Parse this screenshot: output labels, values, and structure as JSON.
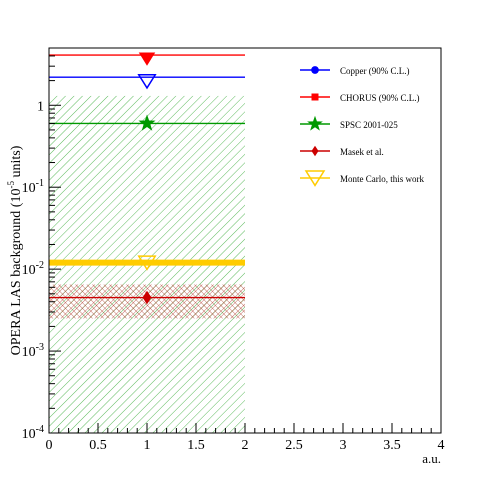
{
  "chart_data": {
    "type": "scatter",
    "xlabel": "a.u.",
    "ylabel_main": "OPERA LAS background (10",
    "ylabel_exp": "-5",
    "ylabel_tail": " units)",
    "xlim": [
      0,
      4
    ],
    "ylim": [
      0.0001,
      5
    ],
    "yscale": "log",
    "xticks": [
      {
        "v": 0,
        "label": "0"
      },
      {
        "v": 0.5,
        "label": "0.5"
      },
      {
        "v": 1,
        "label": "1"
      },
      {
        "v": 1.5,
        "label": "1.5"
      },
      {
        "v": 2,
        "label": "2"
      },
      {
        "v": 2.5,
        "label": "2.5"
      },
      {
        "v": 3,
        "label": "3"
      },
      {
        "v": 3.5,
        "label": "3.5"
      },
      {
        "v": 4,
        "label": "4"
      }
    ],
    "yticks": [
      {
        "v": 1,
        "label": "1"
      },
      {
        "v": 0.1,
        "label": "10",
        "exp": "-1"
      },
      {
        "v": 0.01,
        "label": "10",
        "exp": "-2"
      },
      {
        "v": 0.001,
        "label": "10",
        "exp": "-3"
      },
      {
        "v": 0.0001,
        "label": "10",
        "exp": "-4"
      }
    ],
    "series": [
      {
        "name": "Copper (90% C.L.)",
        "color": "#0000ff",
        "marker": "circle",
        "x": 1,
        "y": 2.2,
        "x_range": [
          0,
          2
        ],
        "band": null,
        "legend_marker": "circle",
        "point_marker": "triangle-down-open"
      },
      {
        "name": "CHORUS (90% C.L.)",
        "color": "#ff0000",
        "marker": "square",
        "x": 1,
        "y": 4.1,
        "x_range": [
          0,
          2
        ],
        "band": null,
        "legend_marker": "square",
        "point_marker": "triangle-down-filled"
      },
      {
        "name": "SPSC 2001-025",
        "color": "#009900",
        "marker": "star",
        "x": 1,
        "y": 0.6,
        "x_range": [
          0,
          2
        ],
        "band": [
          0.0001,
          1.3
        ],
        "legend_marker": "star",
        "point_marker": "star"
      },
      {
        "name": "Masek et al.",
        "color": "#cc0000",
        "marker": "diamond",
        "x": 1,
        "y": 0.0045,
        "x_range": [
          0,
          2
        ],
        "band": [
          0.0025,
          0.0065
        ],
        "legend_marker": "diamond",
        "point_marker": "diamond"
      },
      {
        "name": "Monte Carlo, this work",
        "color": "#ffcc00",
        "marker": "triangle-down-open",
        "x": 1,
        "y": 0.012,
        "x_range": [
          0,
          2
        ],
        "band": null,
        "legend_marker": "triangle-down-open",
        "point_marker": "triangle-down-open"
      }
    ]
  }
}
